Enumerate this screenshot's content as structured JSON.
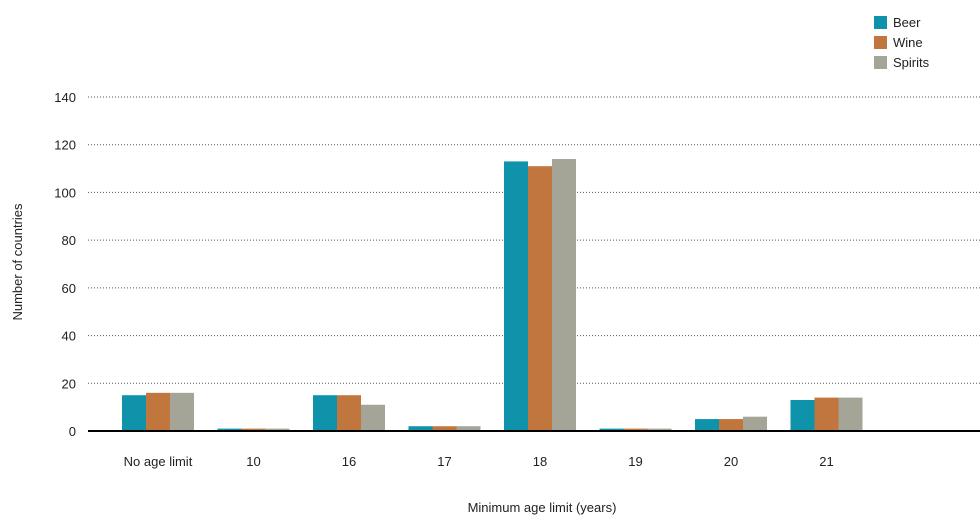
{
  "chart_data": {
    "type": "bar",
    "xlabel": "Minimum age limit (years)",
    "ylabel": "Number of countries",
    "ylim": [
      0,
      140
    ],
    "yticks": [
      0,
      20,
      40,
      60,
      80,
      100,
      120,
      140
    ],
    "grid": "horizontal dotted",
    "legend_position": "top-right",
    "categories": [
      "No age limit",
      "10",
      "16",
      "17",
      "18",
      "19",
      "20",
      "21"
    ],
    "series": [
      {
        "name": "Beer",
        "color": "#0e93aa",
        "values": [
          15,
          1,
          15,
          2,
          113,
          1,
          5,
          13
        ]
      },
      {
        "name": "Wine",
        "color": "#c0763c",
        "values": [
          16,
          1,
          15,
          2,
          111,
          1,
          5,
          14
        ]
      },
      {
        "name": "Spirits",
        "color": "#a4a497",
        "values": [
          16,
          1,
          11,
          2,
          114,
          1,
          6,
          14
        ]
      }
    ]
  }
}
